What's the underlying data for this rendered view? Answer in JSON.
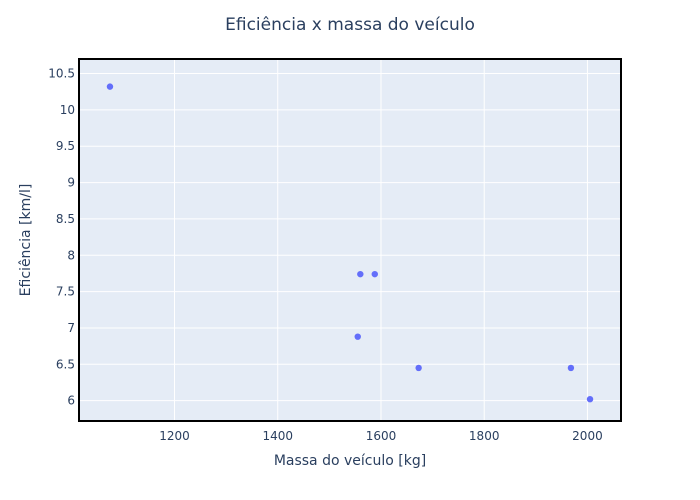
{
  "chart_data": {
    "type": "scatter",
    "title": "Eficiência x massa do veículo",
    "xlabel": "Massa do veículo [kg]",
    "ylabel": "Eficiência [km/l]",
    "xlim": [
      1015,
      2065
    ],
    "ylim": [
      5.72,
      10.7
    ],
    "xticks": [
      1200,
      1400,
      1600,
      1800,
      2000
    ],
    "yticks": [
      6,
      6.5,
      7,
      7.5,
      8,
      8.5,
      9,
      9.5,
      10,
      10.5
    ],
    "xtick_labels": [
      "1200",
      "1400",
      "1600",
      "1800",
      "2000"
    ],
    "ytick_labels": [
      "6",
      "6.5",
      "7",
      "7.5",
      "8",
      "8.5",
      "9",
      "9.5",
      "10",
      "10.5"
    ],
    "grid": true,
    "series": [
      {
        "x": [
          1075,
          1560,
          1588,
          1555,
          1673,
          1968,
          2005
        ],
        "y": [
          10.32,
          7.74,
          7.74,
          6.88,
          6.45,
          6.45,
          6.02
        ]
      }
    ],
    "colors": {
      "marker": "#636efa",
      "plot_bg": "#e5ecf6",
      "grid": "#ffffff",
      "frame": "#000000",
      "text": "#2a3f5f"
    }
  }
}
